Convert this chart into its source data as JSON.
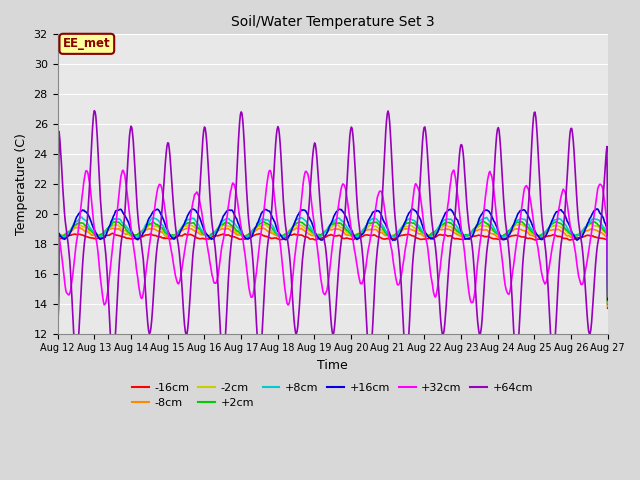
{
  "title": "Soil/Water Temperature Set 3",
  "xlabel": "Time",
  "ylabel": "Temperature (C)",
  "ylim": [
    12,
    32
  ],
  "yticks": [
    12,
    14,
    16,
    18,
    20,
    22,
    24,
    26,
    28,
    30,
    32
  ],
  "bg_color": "#d8d8d8",
  "plot_bg": "#e8e8e8",
  "label_box_text": "EE_met",
  "label_box_bg": "#ffff99",
  "label_box_border": "#8b0000",
  "series": {
    "-16cm": {
      "color": "#ff0000",
      "lw": 1.2,
      "base": 18.5,
      "amp": 0.15,
      "phase": 0.0,
      "noise": 0.05
    },
    "-8cm": {
      "color": "#ff8800",
      "lw": 1.2,
      "base": 18.8,
      "amp": 0.25,
      "phase": 0.05,
      "noise": 0.06
    },
    "-2cm": {
      "color": "#cccc00",
      "lw": 1.2,
      "base": 18.9,
      "amp": 0.35,
      "phase": 0.08,
      "noise": 0.07
    },
    "+2cm": {
      "color": "#00cc00",
      "lw": 1.2,
      "base": 19.0,
      "amp": 0.45,
      "phase": 0.1,
      "noise": 0.07
    },
    "+8cm": {
      "color": "#00cccc",
      "lw": 1.2,
      "base": 19.1,
      "amp": 0.6,
      "phase": 0.13,
      "noise": 0.08
    },
    "+16cm": {
      "color": "#0000dd",
      "lw": 1.2,
      "base": 19.3,
      "amp": 1.0,
      "phase": 0.18,
      "noise": 0.09
    },
    "+32cm": {
      "color": "#ff00ff",
      "lw": 1.2,
      "base": 18.5,
      "amp": 3.8,
      "phase": 0.28,
      "noise": 0.15
    },
    "+64cm": {
      "color": "#9900bb",
      "lw": 1.2,
      "base": 18.5,
      "amp": 7.5,
      "phase": 0.5,
      "noise": 0.1
    }
  },
  "xtick_labels": [
    "Aug 12",
    "Aug 13",
    "Aug 14",
    "Aug 15",
    "Aug 16",
    "Aug 17",
    "Aug 18",
    "Aug 19",
    "Aug 20",
    "Aug 21",
    "Aug 22",
    "Aug 23",
    "Aug 24",
    "Aug 25",
    "Aug 26",
    "Aug 27"
  ],
  "n_points": 720,
  "total_days": 15
}
